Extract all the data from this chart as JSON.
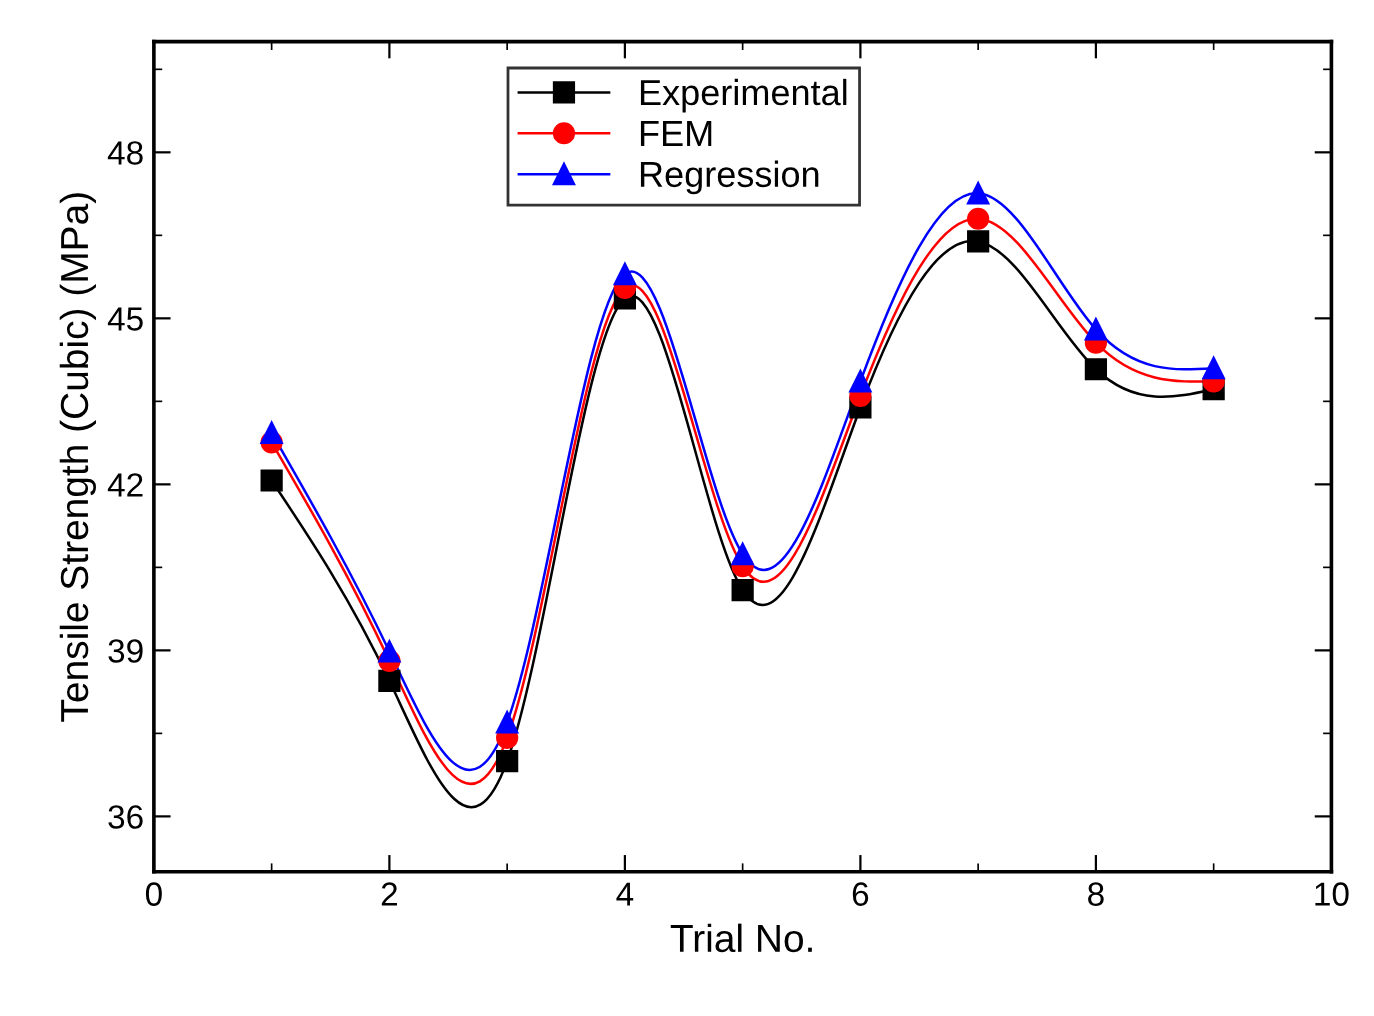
{
  "chart_data": {
    "type": "line",
    "xlabel": "Trial No.",
    "ylabel": "Tensile Strength (Cubic) (MPa)",
    "x": [
      1,
      2,
      3,
      4,
      5,
      6,
      7,
      8,
      9
    ],
    "xlim": [
      0,
      10
    ],
    "xticks": [
      0,
      2,
      4,
      6,
      8,
      10
    ],
    "ylim": [
      35,
      50
    ],
    "yticks": [
      36,
      39,
      42,
      45,
      48
    ],
    "legend": "top",
    "grid": false,
    "series": [
      {
        "name": "Experimental",
        "color": "#000000",
        "marker": "square",
        "values": [
          42.07,
          38.45,
          37.0,
          45.36,
          40.09,
          43.39,
          46.39,
          44.08,
          43.72
        ]
      },
      {
        "name": "FEM",
        "color": "#ff0000",
        "marker": "circle",
        "values": [
          42.76,
          38.81,
          37.42,
          45.55,
          40.52,
          43.6,
          46.8,
          44.56,
          43.86
        ]
      },
      {
        "name": "Regression",
        "color": "#0000ff",
        "marker": "triangle",
        "values": [
          42.93,
          38.98,
          37.7,
          45.8,
          40.74,
          43.86,
          47.26,
          44.8,
          44.1
        ]
      }
    ]
  }
}
